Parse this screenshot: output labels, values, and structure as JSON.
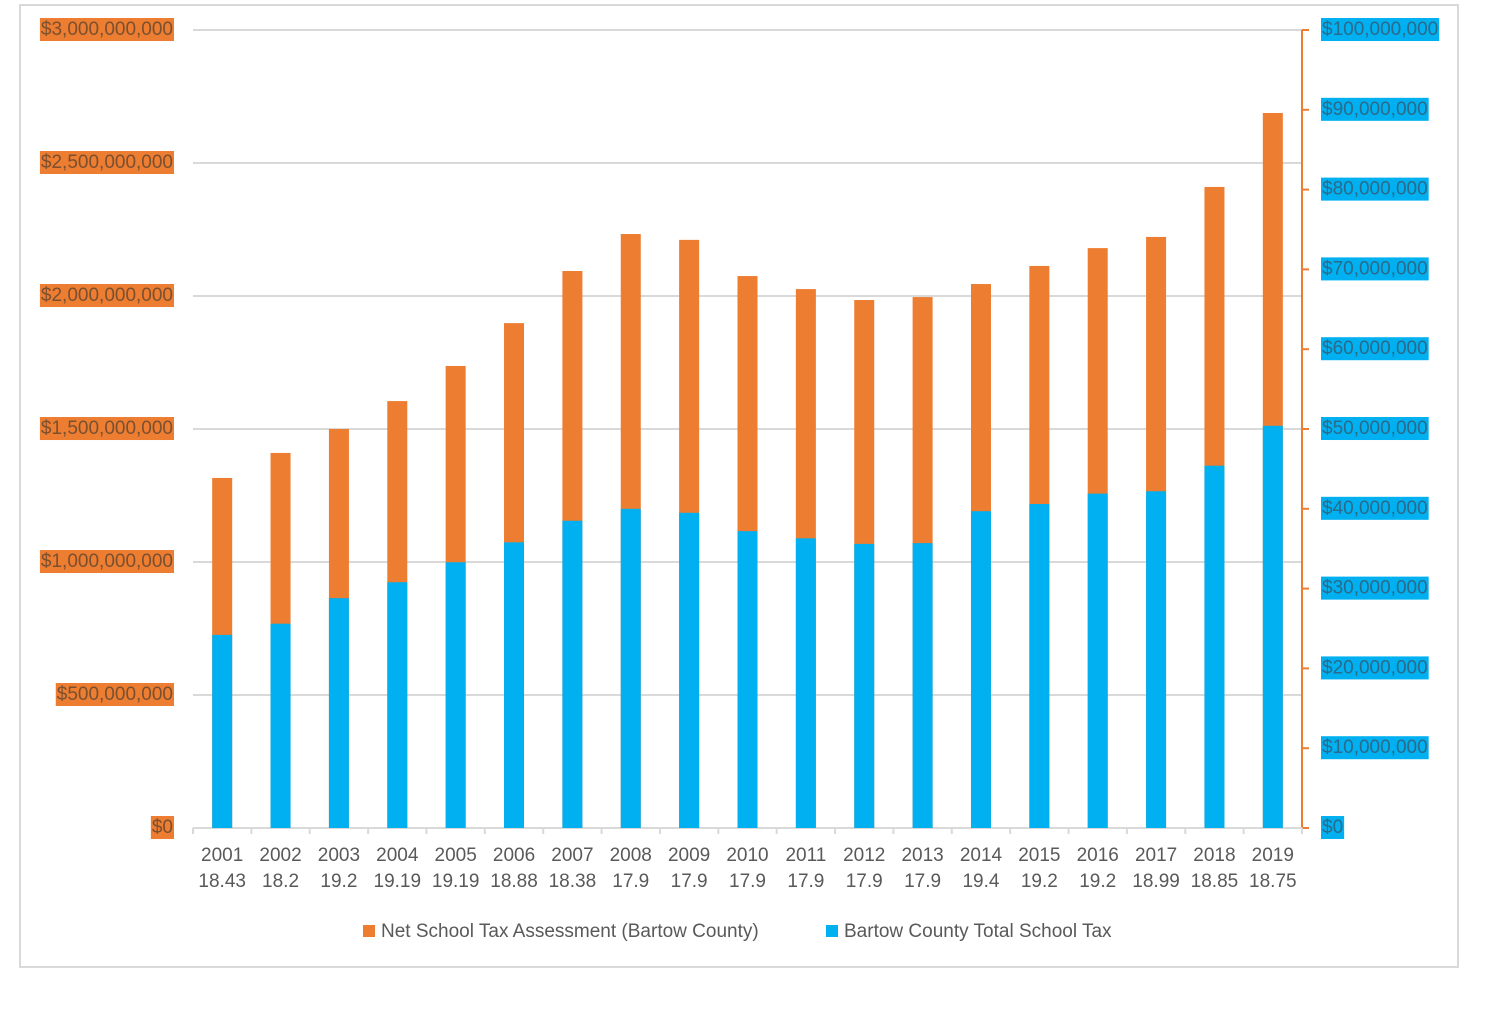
{
  "chart_data": {
    "type": "bar",
    "categories": [
      [
        "2001",
        "18.43"
      ],
      [
        "2002",
        "18.2"
      ],
      [
        "2003",
        "19.2"
      ],
      [
        "2004",
        "19.19"
      ],
      [
        "2005",
        "19.19"
      ],
      [
        "2006",
        "18.88"
      ],
      [
        "2007",
        "18.38"
      ],
      [
        "2008",
        "17.9"
      ],
      [
        "2009",
        "17.9"
      ],
      [
        "2010",
        "17.9"
      ],
      [
        "2011",
        "17.9"
      ],
      [
        "2012",
        "17.9"
      ],
      [
        "2013",
        "17.9"
      ],
      [
        "2014",
        "19.4"
      ],
      [
        "2015",
        "19.2"
      ],
      [
        "2016",
        "19.2"
      ],
      [
        "2017",
        "18.99"
      ],
      [
        "2018",
        "18.85"
      ],
      [
        "2019",
        "18.75"
      ]
    ],
    "series": [
      {
        "name": "Net School Tax Assessment (Bartow County)",
        "color": "#ed7d31",
        "axis": "y",
        "values": [
          1316000000,
          1410000000,
          1500000000,
          1605000000,
          1737000000,
          1898000000,
          2094000000,
          2233000000,
          2211000000,
          2075000000,
          2026000000,
          1985000000,
          1996000000,
          2045000000,
          2113000000,
          2180000000,
          2222000000,
          2410000000,
          2688000000
        ]
      },
      {
        "name": "Bartow County Total School Tax",
        "color": "#00b0f0",
        "axis": "y2",
        "values": [
          24200000,
          25600000,
          28800000,
          30800000,
          33300000,
          35800000,
          38500000,
          40000000,
          39500000,
          37200000,
          36300000,
          35600000,
          35700000,
          39700000,
          40600000,
          41900000,
          42200000,
          45400000,
          50400000
        ]
      }
    ],
    "ylim": [
      0,
      3000000000
    ],
    "yticks": [
      {
        "value": 0,
        "label": "$0"
      },
      {
        "value": 500000000,
        "label": "$500,000,000"
      },
      {
        "value": 1000000000,
        "label": "$1,000,000,000"
      },
      {
        "value": 1500000000,
        "label": "$1,500,000,000"
      },
      {
        "value": 2000000000,
        "label": "$2,000,000,000"
      },
      {
        "value": 2500000000,
        "label": "$2,500,000,000"
      },
      {
        "value": 3000000000,
        "label": "$3,000,000,000"
      }
    ],
    "y2lim": [
      0,
      100000000
    ],
    "y2ticks": [
      {
        "value": 0,
        "label": "$0"
      },
      {
        "value": 10000000,
        "label": "$10,000,000"
      },
      {
        "value": 20000000,
        "label": "$20,000,000"
      },
      {
        "value": 30000000,
        "label": "$30,000,000"
      },
      {
        "value": 40000000,
        "label": "$40,000,000"
      },
      {
        "value": 50000000,
        "label": "$50,000,000"
      },
      {
        "value": 60000000,
        "label": "$60,000,000"
      },
      {
        "value": 70000000,
        "label": "$70,000,000"
      },
      {
        "value": 80000000,
        "label": "$80,000,000"
      },
      {
        "value": 90000000,
        "label": "$90,000,000"
      },
      {
        "value": 100000000,
        "label": "$100,000,000"
      }
    ],
    "grid": true,
    "legend": "bottom"
  }
}
